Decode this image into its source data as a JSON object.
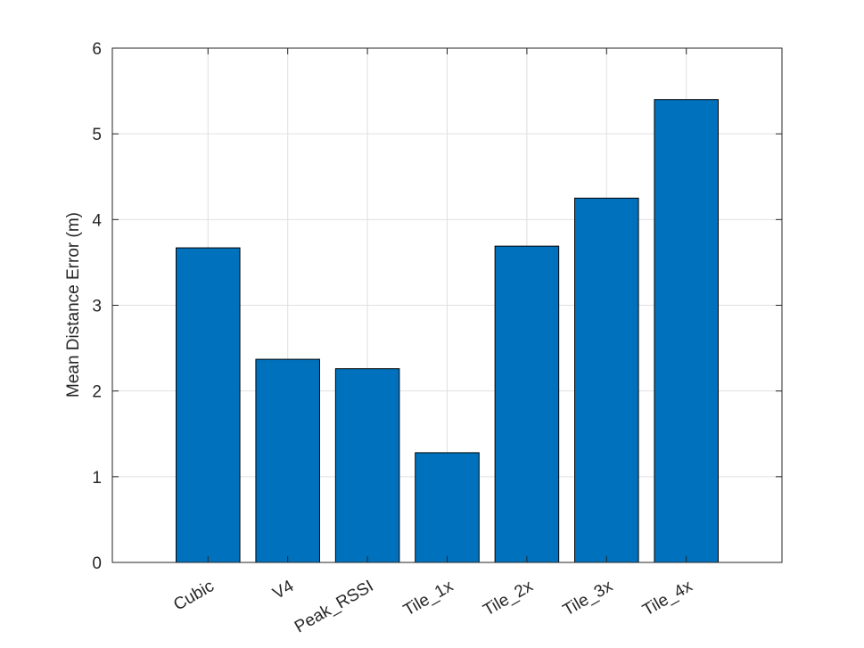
{
  "chart_data": {
    "type": "bar",
    "y_label": "Mean Distance Error (m)",
    "categories": [
      "Cubic",
      "V4",
      "Peak_RSSI",
      "Tile_1x",
      "Tile_2x",
      "Tile_3x",
      "Tile_4x"
    ],
    "values": [
      3.67,
      2.37,
      2.26,
      1.28,
      3.69,
      4.25,
      5.4
    ],
    "color": "#0072bd",
    "ylim": [
      0,
      6
    ],
    "yticks": [
      0,
      1,
      2,
      3,
      4,
      5,
      6
    ],
    "grid": true
  }
}
